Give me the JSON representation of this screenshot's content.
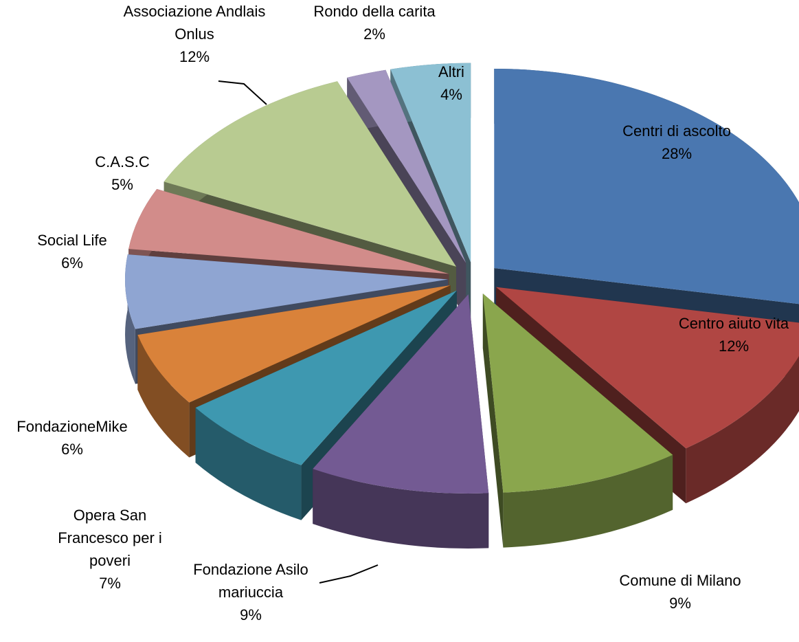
{
  "chart_data": {
    "type": "pie",
    "categories": [
      "Centri di ascolto",
      "Centro aiuto vita",
      "Comune di Milano",
      "Fondazione Asilo mariuccia",
      "Opera San Francesco per i poveri",
      "FondazioneMike",
      "Social Life",
      "C.A.S.C",
      "Associazione Andlais Onlus",
      "Rondo della carita",
      "Altri"
    ],
    "values": [
      28,
      12,
      9,
      9,
      7,
      6,
      6,
      5,
      12,
      2,
      4
    ],
    "value_labels": [
      "28%",
      "12%",
      "9%",
      "9%",
      "7%",
      "6%",
      "6%",
      "5%",
      "12%",
      "2%",
      "4%"
    ],
    "colors": [
      "#4a77b0",
      "#b04643",
      "#8aa64d",
      "#735a93",
      "#3e98b0",
      "#d9823a",
      "#8fa5d2",
      "#d28c8a",
      "#b8cb91",
      "#a497c1",
      "#8cc0d3"
    ]
  }
}
